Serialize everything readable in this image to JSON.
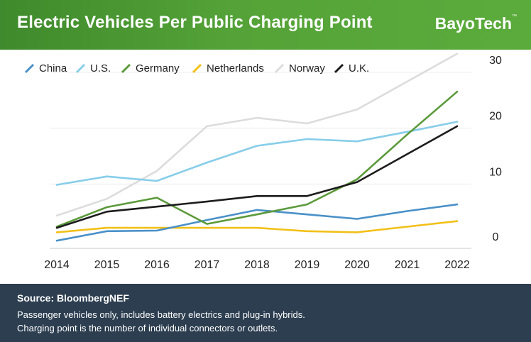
{
  "header": {
    "title": "Electric Vehicles Per Public Charging Point",
    "logo": "BayoTech",
    "logo_tm": "™"
  },
  "footer": {
    "source": "Source: BloombergNEF",
    "note1": "Passenger vehicles only, includes battery electrics and plug-in hybrids.",
    "note2": "Charging point is the number of individual connectors or outlets."
  },
  "chart_data": {
    "type": "line",
    "title": "Electric Vehicles Per Public Charging Point",
    "xlabel": "",
    "ylabel": "",
    "x": [
      "2014",
      "2015",
      "2016",
      "2017",
      "2018",
      "2019",
      "2020",
      "2021",
      "2022"
    ],
    "ylim": [
      0,
      32
    ],
    "yticks": [
      0,
      10,
      20,
      30
    ],
    "y_axis_side": "right",
    "grid": true,
    "legend": "top-left",
    "series": [
      {
        "name": "China",
        "color": "#4a90c8",
        "values": [
          1.5,
          3.2,
          3.3,
          5.2,
          7.0,
          6.2,
          5.4,
          6.8,
          8.0
        ]
      },
      {
        "name": "U.S.",
        "color": "#87cdea",
        "values": [
          11.5,
          13.0,
          12.2,
          15.5,
          18.5,
          19.7,
          19.3,
          21.0,
          22.8
        ]
      },
      {
        "name": "Germany",
        "color": "#5b9a3a",
        "values": [
          4.0,
          7.5,
          9.2,
          4.5,
          6.2,
          8.0,
          12.5,
          20.5,
          28.2
        ]
      },
      {
        "name": "Netherlands",
        "color": "#f2c018",
        "values": [
          3.0,
          3.8,
          3.8,
          3.8,
          3.8,
          3.2,
          3.0,
          4.0,
          5.0
        ]
      },
      {
        "name": "Norway",
        "color": "#dcdcdc",
        "values": [
          6.0,
          9.0,
          14.0,
          22.0,
          23.5,
          22.5,
          25.0,
          30.0,
          35.0
        ]
      },
      {
        "name": "U.K.",
        "color": "#1c1c1c",
        "values": [
          3.8,
          6.7,
          7.6,
          8.5,
          9.5,
          9.5,
          12.0,
          17.0,
          22.0
        ]
      }
    ]
  }
}
